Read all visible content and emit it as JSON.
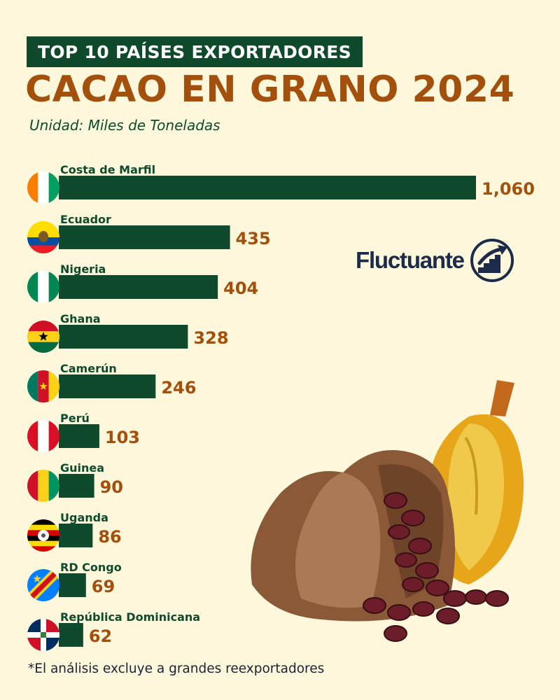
{
  "header": {
    "banner": "TOP 10 PAÍSES EXPORTADORES",
    "title": "CACAO EN GRANO 2024",
    "subtitle": "Unidad: Miles de Toneladas"
  },
  "footnote": "*El análisis excluye a grandes reexportadores",
  "brand": {
    "name": "Fluctuante",
    "icon": "rising-arrow-stairs-icon",
    "color": "#1c2b4a"
  },
  "colors": {
    "bar": "#0f4a2c",
    "value": "#a3500c",
    "label": "#0f4a2c",
    "background": "#fdf8dc"
  },
  "chart_data": {
    "type": "bar",
    "orientation": "horizontal",
    "title": "CACAO EN GRANO 2024",
    "subtitle": "Unidad: Miles de Toneladas",
    "categories": [
      "Costa de Marfil",
      "Ecuador",
      "Nigeria",
      "Ghana",
      "Camerún",
      "Perú",
      "Guinea",
      "Uganda",
      "RD Congo",
      "República Dominicana"
    ],
    "values": [
      1060,
      435,
      404,
      328,
      246,
      103,
      90,
      86,
      69,
      62
    ],
    "value_labels": [
      "1,060",
      "435",
      "404",
      "328",
      "246",
      "103",
      "90",
      "86",
      "69",
      "62"
    ],
    "flags": [
      "cote-divoire-flag-icon",
      "ecuador-flag-icon",
      "nigeria-flag-icon",
      "ghana-flag-icon",
      "cameroon-flag-icon",
      "peru-flag-icon",
      "guinea-flag-icon",
      "uganda-flag-icon",
      "dr-congo-flag-icon",
      "dominican-republic-flag-icon"
    ],
    "xlim": [
      0,
      1060
    ],
    "grid": false,
    "legend": "none"
  }
}
